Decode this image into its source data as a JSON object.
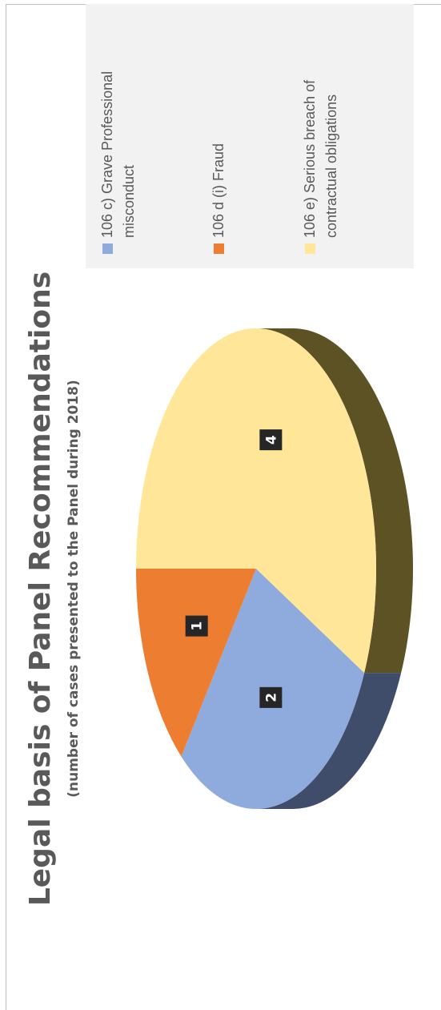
{
  "chart_data": {
    "type": "pie",
    "title": "Legal basis of Panel Recommendations",
    "subtitle": "(number of cases presented to the Panel during 2018)",
    "categories": [
      "106 c) Grave Professional misconduct",
      "106 d (i) Fraud",
      "106 e) Serious breach of contractual obligations"
    ],
    "legend_lines": [
      [
        "106 c) Grave Professional",
        "misconduct"
      ],
      [
        "106 d (i) Fraud"
      ],
      [
        "106 e) Serious breach of",
        "contractual obligations"
      ]
    ],
    "values": [
      2,
      1,
      4
    ],
    "data_labels": [
      "2",
      "1",
      "4"
    ],
    "colors": [
      "#8faadc",
      "#ed7d31",
      "#ffe699"
    ],
    "side_colors": [
      "#3f4d6b",
      "#5a2a0c",
      "#5c5223"
    ],
    "legend_position": "right",
    "style": "3d"
  }
}
